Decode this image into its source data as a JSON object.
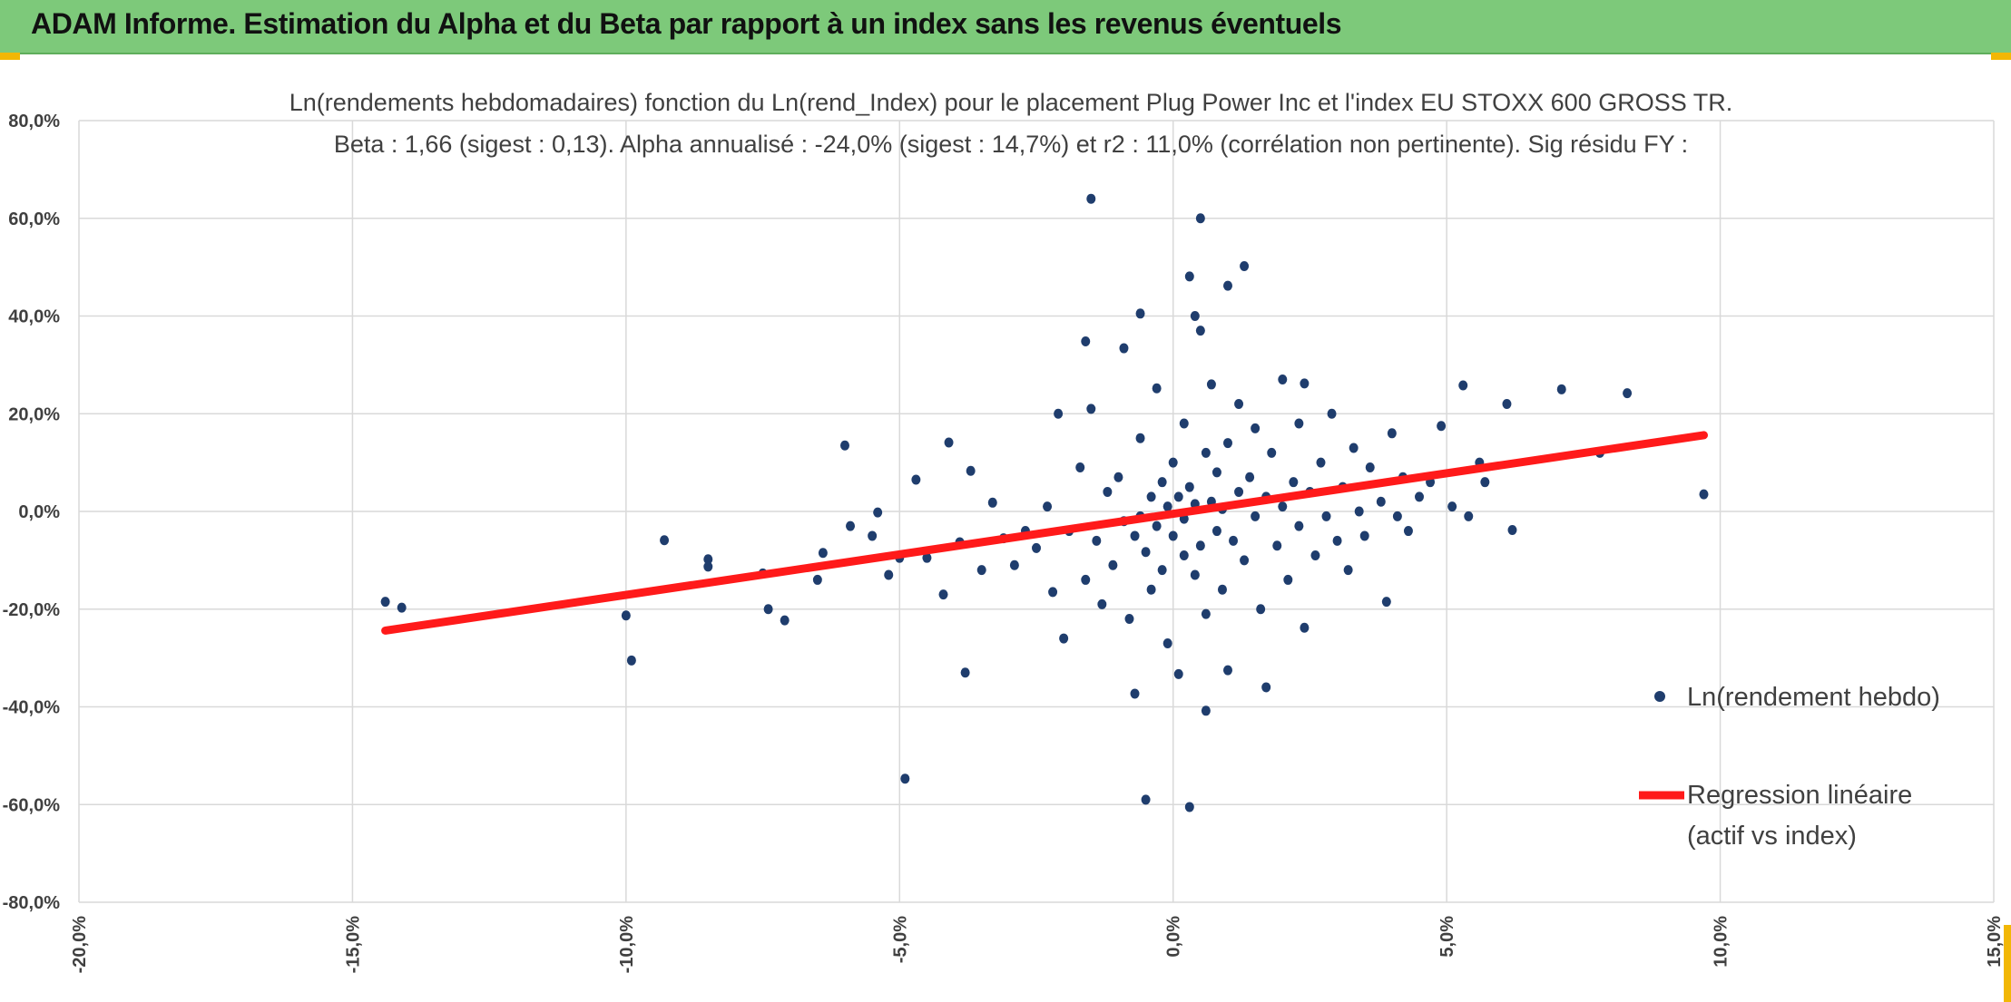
{
  "header": {
    "title": "ADAM Informe. Estimation du Alpha et du Beta par rapport à un index sans les revenus éventuels",
    "background": "#7dc97a"
  },
  "chart_data": {
    "type": "scatter",
    "title_line1": "Ln(rendements hebdomadaires) fonction du Ln(rend_Index) pour le placement Plug Power Inc et l'index EU STOXX 600 GROSS TR.",
    "title_line2": "Beta : 1,66 (sigest : 0,13).  Alpha annualisé : -24,0% (sigest : 14,7%) et r2 : 11,0% (corrélation non pertinente). Sig résidu FY :",
    "xlim": [
      -0.2,
      0.15
    ],
    "ylim": [
      -0.8,
      0.8
    ],
    "x_ticks": [
      -0.2,
      -0.15,
      -0.1,
      -0.05,
      0.0,
      0.05,
      0.1,
      0.15
    ],
    "y_ticks": [
      0.8,
      0.6,
      0.4,
      0.2,
      0.0,
      -0.2,
      -0.4,
      -0.6,
      -0.8
    ],
    "x_tick_labels": [
      "-20,0%",
      "-15,0%",
      "-10,0%",
      "-5,0%",
      "0,0%",
      "5,0%",
      "10,0%",
      "15,0%"
    ],
    "y_tick_labels": [
      "80,0%",
      "60,0%",
      "40,0%",
      "20,0%",
      "0,0%",
      "-20,0%",
      "-40,0%",
      "-60,0%",
      "-80,0%"
    ],
    "grid": true,
    "legend_position": "right",
    "series": [
      {
        "name": "Ln(rendement hebdo)",
        "kind": "scatter",
        "color": "#1f3d6d",
        "points": [
          [
            -0.144,
            -0.185
          ],
          [
            -0.141,
            -0.197
          ],
          [
            -0.1,
            -0.213
          ],
          [
            -0.099,
            -0.305
          ],
          [
            -0.093,
            -0.059
          ],
          [
            -0.085,
            -0.098
          ],
          [
            -0.085,
            -0.113
          ],
          [
            -0.075,
            -0.127
          ],
          [
            -0.074,
            -0.2
          ],
          [
            -0.071,
            -0.223
          ],
          [
            -0.065,
            -0.14
          ],
          [
            -0.064,
            -0.085
          ],
          [
            -0.06,
            0.135
          ],
          [
            -0.059,
            -0.03
          ],
          [
            -0.055,
            -0.05
          ],
          [
            -0.054,
            -0.002
          ],
          [
            -0.052,
            -0.13
          ],
          [
            -0.05,
            -0.095
          ],
          [
            -0.049,
            -0.547
          ],
          [
            -0.047,
            0.065
          ],
          [
            -0.045,
            -0.095
          ],
          [
            -0.042,
            -0.17
          ],
          [
            -0.041,
            0.141
          ],
          [
            -0.039,
            -0.063
          ],
          [
            -0.038,
            -0.33
          ],
          [
            -0.037,
            0.083
          ],
          [
            -0.035,
            -0.12
          ],
          [
            -0.033,
            0.018
          ],
          [
            -0.031,
            -0.055
          ],
          [
            -0.029,
            -0.11
          ],
          [
            -0.027,
            -0.04
          ],
          [
            -0.025,
            -0.075
          ],
          [
            -0.023,
            0.01
          ],
          [
            -0.022,
            -0.165
          ],
          [
            -0.021,
            0.2
          ],
          [
            -0.02,
            -0.26
          ],
          [
            -0.019,
            -0.04
          ],
          [
            -0.017,
            0.09
          ],
          [
            -0.016,
            -0.14
          ],
          [
            -0.015,
            0.21
          ],
          [
            -0.016,
            0.348
          ],
          [
            -0.015,
            0.64
          ],
          [
            -0.014,
            -0.06
          ],
          [
            -0.013,
            -0.19
          ],
          [
            -0.012,
            0.04
          ],
          [
            -0.011,
            -0.11
          ],
          [
            -0.01,
            0.07
          ],
          [
            -0.009,
            -0.02
          ],
          [
            -0.009,
            0.334
          ],
          [
            -0.008,
            -0.22
          ],
          [
            -0.007,
            -0.05
          ],
          [
            -0.007,
            -0.373
          ],
          [
            -0.006,
            0.15
          ],
          [
            -0.006,
            -0.01
          ],
          [
            -0.006,
            0.405
          ],
          [
            -0.005,
            -0.083
          ],
          [
            -0.005,
            -0.59
          ],
          [
            -0.004,
            0.03
          ],
          [
            -0.004,
            -0.16
          ],
          [
            -0.003,
            0.252
          ],
          [
            -0.003,
            -0.03
          ],
          [
            -0.002,
            0.06
          ],
          [
            -0.002,
            -0.12
          ],
          [
            -0.001,
            -0.27
          ],
          [
            -0.001,
            0.01
          ],
          [
            0.0,
            -0.05
          ],
          [
            0.0,
            0.1
          ],
          [
            0.001,
            -0.333
          ],
          [
            0.001,
            0.03
          ],
          [
            0.002,
            -0.09
          ],
          [
            0.002,
            0.18
          ],
          [
            0.002,
            -0.015
          ],
          [
            0.003,
            0.481
          ],
          [
            0.003,
            0.05
          ],
          [
            0.003,
            -0.605
          ],
          [
            0.004,
            -0.13
          ],
          [
            0.004,
            0.4
          ],
          [
            0.004,
            0.015
          ],
          [
            0.005,
            0.6
          ],
          [
            0.005,
            -0.07
          ],
          [
            0.005,
            0.37
          ],
          [
            0.006,
            0.12
          ],
          [
            0.006,
            -0.21
          ],
          [
            0.006,
            -0.408
          ],
          [
            0.007,
            0.02
          ],
          [
            0.007,
            0.26
          ],
          [
            0.008,
            -0.04
          ],
          [
            0.008,
            0.08
          ],
          [
            0.009,
            -0.16
          ],
          [
            0.009,
            0.005
          ],
          [
            0.01,
            0.462
          ],
          [
            0.01,
            -0.325
          ],
          [
            0.01,
            0.14
          ],
          [
            0.011,
            -0.06
          ],
          [
            0.012,
            0.04
          ],
          [
            0.012,
            0.22
          ],
          [
            0.013,
            0.502
          ],
          [
            0.013,
            -0.1
          ],
          [
            0.014,
            0.07
          ],
          [
            0.015,
            -0.01
          ],
          [
            0.015,
            0.17
          ],
          [
            0.016,
            -0.2
          ],
          [
            0.017,
            0.03
          ],
          [
            0.017,
            -0.36
          ],
          [
            0.018,
            0.12
          ],
          [
            0.019,
            -0.07
          ],
          [
            0.02,
            0.27
          ],
          [
            0.02,
            0.01
          ],
          [
            0.021,
            -0.14
          ],
          [
            0.022,
            0.06
          ],
          [
            0.023,
            0.18
          ],
          [
            0.023,
            -0.03
          ],
          [
            0.024,
            0.262
          ],
          [
            0.024,
            -0.238
          ],
          [
            0.025,
            0.04
          ],
          [
            0.026,
            -0.09
          ],
          [
            0.027,
            0.1
          ],
          [
            0.028,
            -0.01
          ],
          [
            0.029,
            0.2
          ],
          [
            0.03,
            -0.06
          ],
          [
            0.031,
            0.05
          ],
          [
            0.032,
            -0.12
          ],
          [
            0.033,
            0.13
          ],
          [
            0.034,
            0.0
          ],
          [
            0.035,
            -0.05
          ],
          [
            0.036,
            0.09
          ],
          [
            0.038,
            0.02
          ],
          [
            0.039,
            -0.185
          ],
          [
            0.04,
            0.16
          ],
          [
            0.041,
            -0.01
          ],
          [
            0.042,
            0.07
          ],
          [
            0.043,
            -0.04
          ],
          [
            0.045,
            0.03
          ],
          [
            0.047,
            0.06
          ],
          [
            0.049,
            0.175
          ],
          [
            0.051,
            0.01
          ],
          [
            0.053,
            0.258
          ],
          [
            0.054,
            -0.01
          ],
          [
            0.056,
            0.1
          ],
          [
            0.057,
            0.06
          ],
          [
            0.061,
            0.22
          ],
          [
            0.062,
            -0.038
          ],
          [
            0.071,
            0.25
          ],
          [
            0.078,
            0.12
          ],
          [
            0.083,
            0.242
          ],
          [
            0.097,
            0.035
          ]
        ]
      },
      {
        "name": "Regression linéaire (actif vs index)",
        "kind": "line",
        "color": "#ff1a1a",
        "x_range": [
          -0.144,
          0.097
        ],
        "beta": 1.66,
        "intercept": -0.0049
      }
    ],
    "legend": [
      {
        "label": "Ln(rendement hebdo)",
        "color": "#1f3d6d",
        "kind": "marker"
      },
      {
        "label_line1": "Regression linéaire",
        "label_line2": "(actif vs index)",
        "color": "#ff1a1a",
        "kind": "line"
      }
    ]
  }
}
